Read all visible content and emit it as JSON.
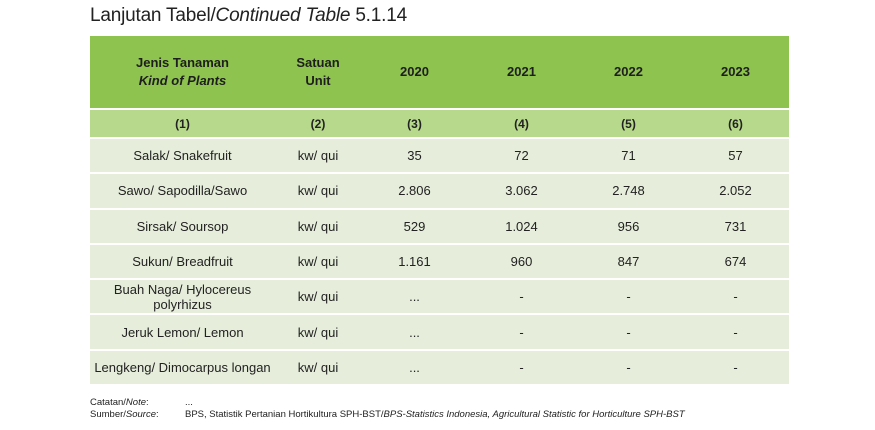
{
  "title": {
    "main": "Lanjutan Tabel/",
    "italic": "Continued Table",
    "number": " 5.1.14"
  },
  "header": {
    "col_name": [
      "Jenis Tanaman",
      "Kind of Plants"
    ],
    "col_unit": [
      "Satuan",
      "Unit"
    ],
    "years": [
      "2020",
      "2021",
      "2022",
      "2023"
    ]
  },
  "col_numbers": [
    "(1)",
    "(2)",
    "(3)",
    "(4)",
    "(5)",
    "(6)"
  ],
  "rows": [
    {
      "name": "Salak/ Snakefruit",
      "unit": "kw/ qui",
      "values": [
        "35",
        "72",
        "71",
        "57"
      ]
    },
    {
      "name": "Sawo/ Sapodilla/Sawo",
      "unit": "kw/ qui",
      "values": [
        "2.806",
        "3.062",
        "2.748",
        "2.052"
      ]
    },
    {
      "name": "Sirsak/ Soursop",
      "unit": "kw/ qui",
      "values": [
        "529",
        "1.024",
        "956",
        "731"
      ]
    },
    {
      "name": "Sukun/ Breadfruit",
      "unit": "kw/ qui",
      "values": [
        "1.161",
        "960",
        "847",
        "674"
      ]
    },
    {
      "name": "Buah Naga/ Hylocereus polyrhizus",
      "unit": "kw/ qui",
      "values": [
        "...",
        "-",
        "-",
        "-"
      ]
    },
    {
      "name": "Jeruk Lemon/ Lemon",
      "unit": "kw/ qui",
      "values": [
        "...",
        "-",
        "-",
        "-"
      ]
    },
    {
      "name": "Lengkeng/ Dimocarpus longan",
      "unit": "kw/ qui",
      "values": [
        "...",
        "-",
        "-",
        "-"
      ]
    }
  ],
  "notes": {
    "note_label": "Catatan/",
    "note_label_italic": "Note",
    "note_suffix": ":",
    "note_value": "...",
    "source_label": "Sumber/",
    "source_label_italic": "Source",
    "source_suffix": ":",
    "source_value": "BPS, Statistik Pertanian Hortikultura SPH-BST/",
    "source_value_italic": "BPS-Statistics Indonesia, Agricultural Statistic for Horticulture SPH-BST"
  },
  "colors": {
    "header_bg": "#8fc34f",
    "subheader_bg": "#b7d98b",
    "row_bg": "#e6eedb"
  }
}
